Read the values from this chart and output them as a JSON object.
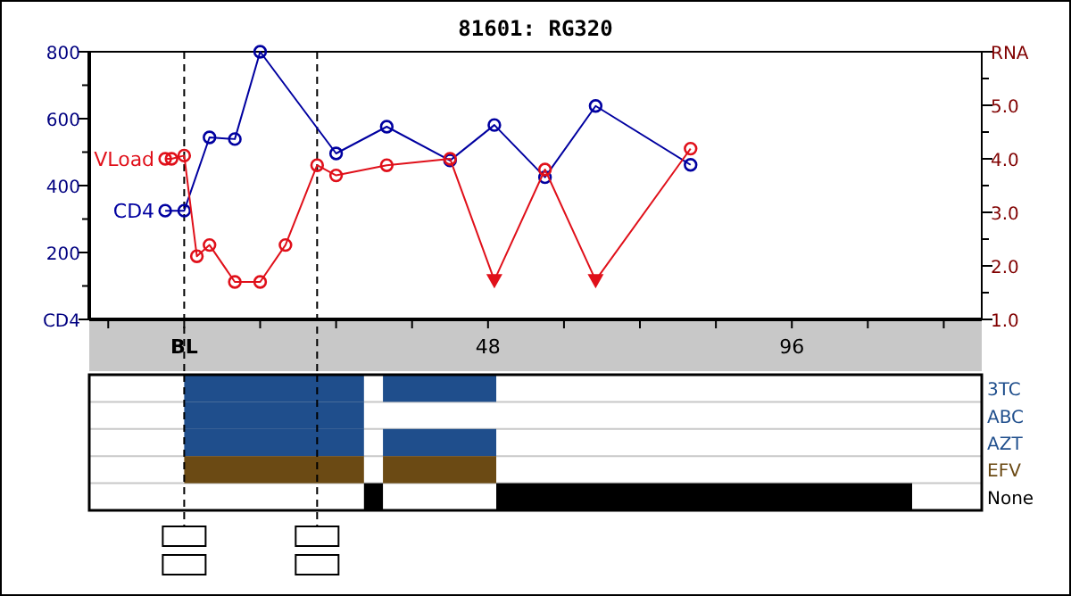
{
  "chart_data": [
    {
      "type": "line",
      "title": "81601: RG320",
      "xlim": [
        -15,
        126
      ],
      "xticks": [
        {
          "value": -12,
          "label": null
        },
        {
          "value": 0,
          "label": "BL"
        },
        {
          "value": 12,
          "label": null
        },
        {
          "value": 24,
          "label": null
        },
        {
          "value": 36,
          "label": null
        },
        48,
        {
          "value": 60,
          "label": null
        },
        {
          "value": 72,
          "label": null
        },
        {
          "value": 84,
          "label": null
        },
        96,
        {
          "value": 108,
          "label": null
        },
        {
          "value": 120,
          "label": null
        }
      ],
      "ylim": [
        0,
        800
      ],
      "yticks": [
        {
          "value": 0,
          "label": "CD4"
        },
        {
          "value": 100,
          "label": null
        },
        200,
        {
          "value": 300,
          "label": null
        },
        400,
        {
          "value": 500,
          "label": null
        },
        600,
        {
          "value": 700,
          "label": null
        },
        800
      ],
      "y2lim": [
        1,
        6
      ],
      "y2ticks": [
        {
          "value": 1,
          "label": "1.0"
        },
        {
          "value": 1.5,
          "label": null
        },
        {
          "value": 2,
          "label": "2.0"
        },
        {
          "value": 2.5,
          "label": null
        },
        {
          "value": 3,
          "label": "3.0"
        },
        {
          "value": 3.5,
          "label": null
        },
        {
          "value": 4,
          "label": "4.0"
        },
        {
          "value": 4.5,
          "label": null
        },
        {
          "value": 5,
          "label": "5.0"
        },
        {
          "value": 5.5,
          "label": null
        },
        {
          "value": 6,
          "label": "RNA"
        }
      ],
      "marker": "circle",
      "grid": false,
      "ref_lines": [
        {
          "axis": "x",
          "value": 0,
          "line_style": "dashed",
          "color": "#000000"
        },
        {
          "axis": "x",
          "value": 21,
          "line_style": "dashed",
          "color": "#000000"
        }
      ],
      "series": [
        {
          "name": "CD4",
          "color": "#0000a0",
          "x": [
            -3,
            0,
            4,
            8,
            12,
            24,
            32,
            42,
            49,
            57,
            65,
            80
          ],
          "values": [
            325,
            325,
            544,
            539,
            800,
            496,
            576,
            475,
            581,
            425,
            638,
            462
          ]
        },
        {
          "name": "VLoad",
          "color": "#e0101a",
          "axis": "y2",
          "x": [
            -3,
            -2,
            0,
            2,
            4,
            8,
            12,
            16,
            21,
            24,
            32,
            42,
            49,
            57,
            65,
            80
          ],
          "values": [
            4.0,
            4.0,
            4.06,
            2.18,
            2.39,
            1.7,
            1.7,
            2.39,
            3.88,
            3.69,
            3.88,
            4.0,
            1.73,
            3.8,
            1.73,
            4.19
          ]
        },
        {
          "type": "scatter",
          "marker": "triangle",
          "color": "#e0101a",
          "axis": "y2",
          "x": [
            49,
            65
          ],
          "values": [
            1.73,
            1.73
          ]
        }
      ]
    },
    {
      "type": "bar",
      "orientation": "horizontal",
      "xlim": [
        -15,
        126
      ],
      "tick_labels": "y",
      "grid": "y",
      "categories": [
        "3TC",
        "ABC",
        "AZT",
        "EFV",
        "None"
      ],
      "ref_lines": [
        {
          "axis": "x",
          "value": 0,
          "line_style": "dashed",
          "color": "#000000"
        },
        {
          "axis": "x",
          "value": 21,
          "line_style": "dashed",
          "color": "#000000"
        }
      ],
      "series": [
        {
          "colors": [
            "#1f4e8c",
            "#1f4e8c",
            "#1f4e8c",
            "#6b4a14",
            "#000000"
          ],
          "base": [
            0,
            0,
            0,
            0,
            28.4
          ],
          "values": [
            28.4,
            28.4,
            28.4,
            28.4,
            3
          ]
        },
        {
          "colors": [
            "#1f4e8c",
            "#1f4e8c",
            "#1f4e8c",
            "#6b4a14",
            "#000000"
          ],
          "base": [
            31.4,
            null,
            31.4,
            31.4,
            49.3
          ],
          "values": [
            17.9,
            null,
            17.9,
            17.9,
            65.7
          ]
        }
      ]
    }
  ]
}
